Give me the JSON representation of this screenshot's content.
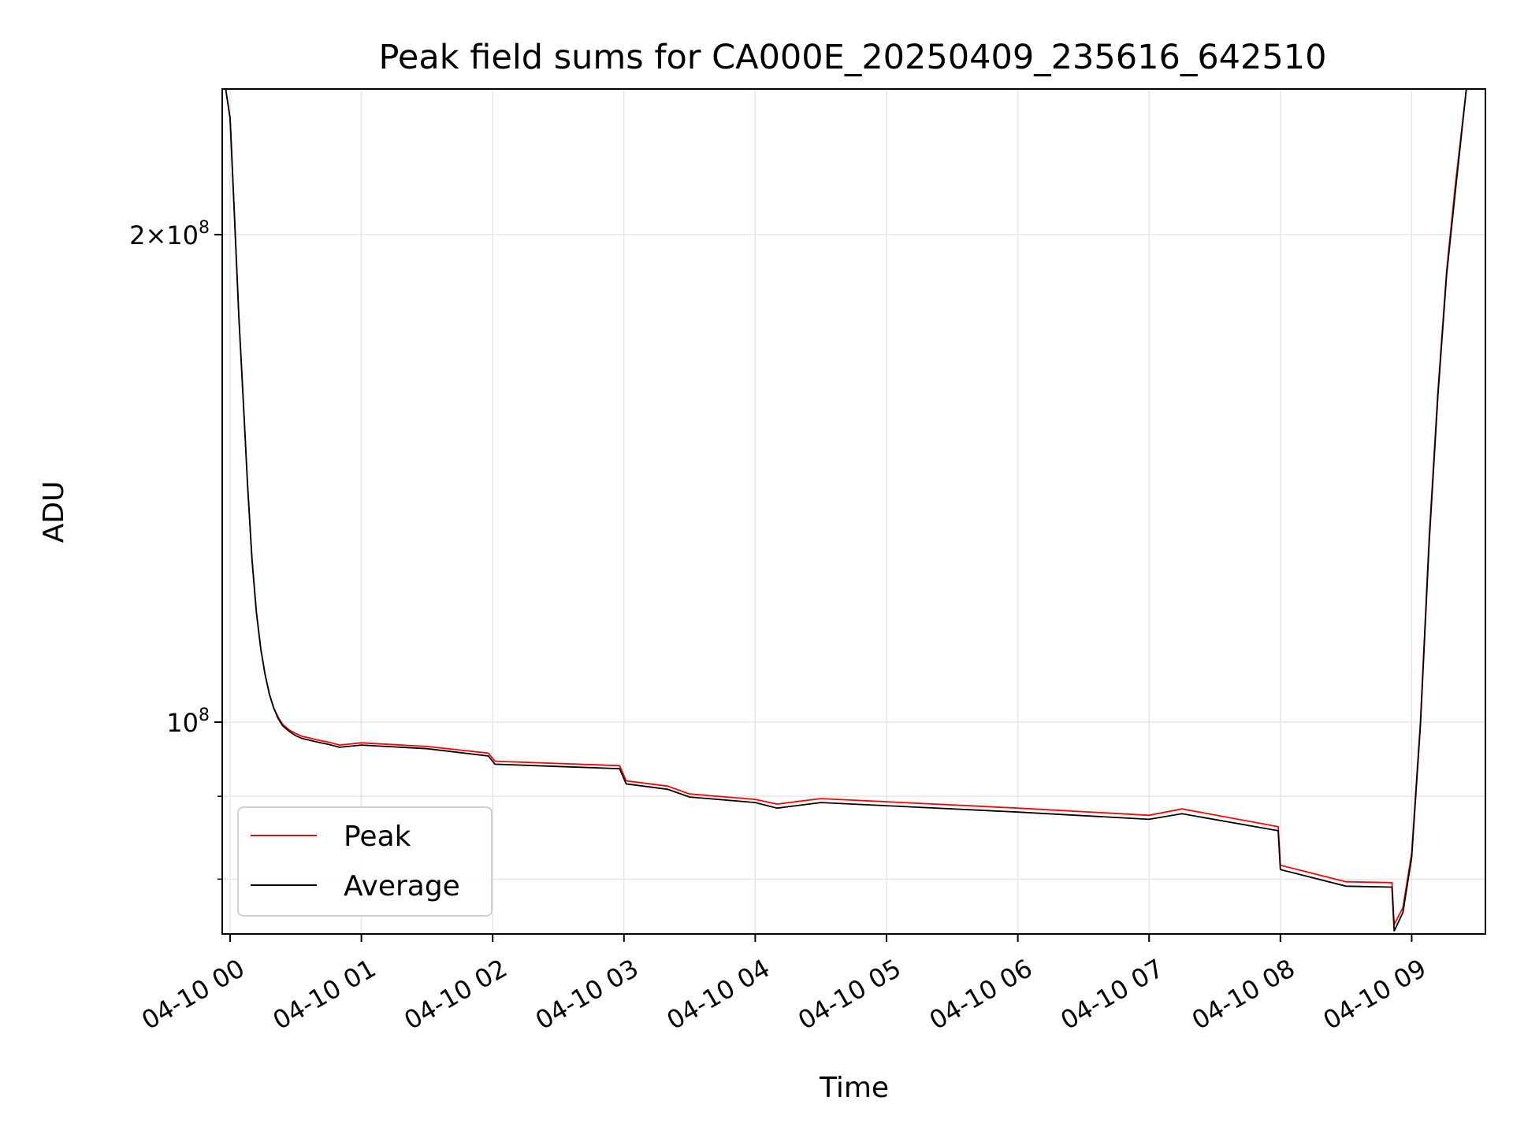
{
  "chart_data": {
    "type": "line",
    "title": "Peak field sums for CA000E_20250409_235616_642510",
    "xlabel": "Time",
    "ylabel": "ADU",
    "xlim": [
      "2025-04-09 23:56",
      "2025-04-10 09:35"
    ],
    "ylim": [
      74000000,
      246000000
    ],
    "yscale": "log",
    "grid": true,
    "legend_position": "lower-left",
    "x_ticks": [
      "04-10 00",
      "04-10 01",
      "04-10 02",
      "04-10 03",
      "04-10 04",
      "04-10 05",
      "04-10 06",
      "04-10 07",
      "04-10 08",
      "04-10 09"
    ],
    "y_ticks": [
      {
        "value": 100000000,
        "mantissa": "",
        "base": "10",
        "exp": "8"
      },
      {
        "value": 200000000,
        "mantissa": "2×",
        "base": "10",
        "exp": "8"
      }
    ],
    "x": [
      "2025-04-09 23:56",
      "2025-04-09 23:57",
      "2025-04-09 23:58",
      "2025-04-10 00:00",
      "2025-04-10 00:02",
      "2025-04-10 00:04",
      "2025-04-10 00:06",
      "2025-04-10 00:08",
      "2025-04-10 00:10",
      "2025-04-10 00:12",
      "2025-04-10 00:14",
      "2025-04-10 00:16",
      "2025-04-10 00:18",
      "2025-04-10 00:20",
      "2025-04-10 00:22",
      "2025-04-10 00:24",
      "2025-04-10 00:27",
      "2025-04-10 00:30",
      "2025-04-10 00:33",
      "2025-04-10 00:36",
      "2025-04-10 00:40",
      "2025-04-10 00:45",
      "2025-04-10 00:50",
      "2025-04-10 01:00",
      "2025-04-10 01:30",
      "2025-04-10 01:58",
      "2025-04-10 02:01",
      "2025-04-10 02:30",
      "2025-04-10 02:58",
      "2025-04-10 03:01",
      "2025-04-10 03:20",
      "2025-04-10 03:30",
      "2025-04-10 04:00",
      "2025-04-10 04:10",
      "2025-04-10 04:30",
      "2025-04-10 05:00",
      "2025-04-10 06:00",
      "2025-04-10 07:00",
      "2025-04-10 07:15",
      "2025-04-10 07:59",
      "2025-04-10 08:00",
      "2025-04-10 08:30",
      "2025-04-10 08:51",
      "2025-04-10 08:52",
      "2025-04-10 08:56",
      "2025-04-10 09:00",
      "2025-04-10 09:04",
      "2025-04-10 09:08",
      "2025-04-10 09:12",
      "2025-04-10 09:16",
      "2025-04-10 09:20",
      "2025-04-10 09:25",
      "2025-04-10 09:35"
    ],
    "series": [
      {
        "name": "Peak",
        "color": "#ff0000",
        "values": [
          246000000,
          246000000,
          246000000,
          236000000,
          205000000,
          178000000,
          158000000,
          140000000,
          126000000,
          117000000,
          111000000,
          107000000,
          104000000,
          102000000,
          100700000,
          99700000,
          98900000,
          98400000,
          98000000,
          97800000,
          97500000,
          97200000,
          96800000,
          97100000,
          96600000,
          95700000,
          94600000,
          94300000,
          94000000,
          92000000,
          91300000,
          90300000,
          89600000,
          89000000,
          89700000,
          89300000,
          88500000,
          87600000,
          88400000,
          86200000,
          81600000,
          79700000,
          79600000,
          75000000,
          76800000,
          83000000,
          100000000,
          130000000,
          160000000,
          190000000,
          215000000,
          246000000,
          246000000
        ]
      },
      {
        "name": "Average",
        "color": "#000000",
        "values": [
          246000000,
          246000000,
          246000000,
          236000000,
          205000000,
          178000000,
          158000000,
          140000000,
          126000000,
          117000000,
          111000000,
          107000000,
          104000000,
          102000000,
          100500000,
          99500000,
          98700000,
          98100000,
          97700000,
          97500000,
          97200000,
          96900000,
          96500000,
          96800000,
          96300000,
          95300000,
          94200000,
          93900000,
          93600000,
          91600000,
          90900000,
          89900000,
          89200000,
          88500000,
          89200000,
          88800000,
          88000000,
          87100000,
          87800000,
          85700000,
          81100000,
          79200000,
          79100000,
          74300000,
          76300000,
          82500000,
          99500000,
          129000000,
          159000000,
          189000000,
          213000000,
          246000000,
          246000000
        ]
      }
    ]
  }
}
